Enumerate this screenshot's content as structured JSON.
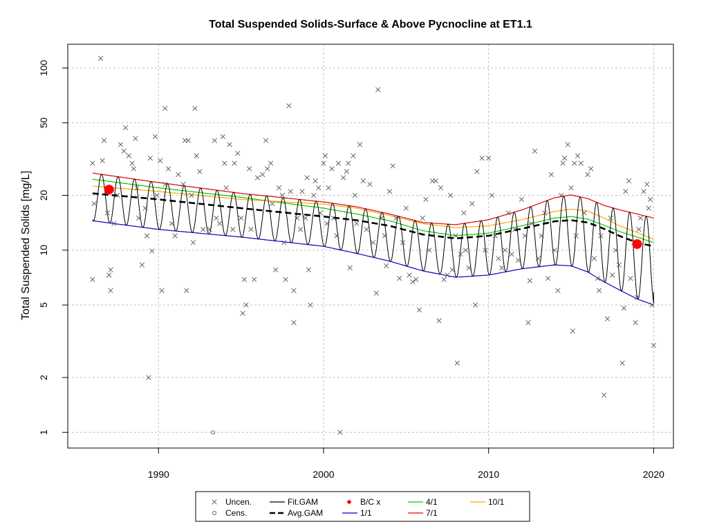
{
  "chart_data": {
    "type": "line",
    "title": "Total Suspended Solids-Surface & Above Pycnocline at ET1.1",
    "xlabel": "",
    "ylabel": "Total Suspended Solids [mg/L]",
    "y_scale": "log",
    "xlim": [
      1984.5,
      2021.2
    ],
    "ylim": [
      0.82,
      135
    ],
    "grid": true,
    "x_ticks": [
      1990,
      2000,
      2010,
      2020
    ],
    "y_ticks": [
      1,
      2,
      5,
      10,
      20,
      50,
      100
    ],
    "legend_position": "bottom",
    "colors": {
      "points": "#555555",
      "fit": "#000000",
      "avg": "#000000",
      "bc": "#ff0000",
      "s1_1": "#0000cc",
      "s4_1": "#00cc00",
      "s7_1": "#dd0000",
      "s10_1": "#ffa500",
      "grid": "#c0c0c0"
    },
    "legend": [
      {
        "label": "Uncen.",
        "symbol": "x-icon",
        "color": "#555555"
      },
      {
        "label": "Cens.",
        "symbol": "circle-icon",
        "color": "#555555"
      },
      {
        "label": "Fit.GAM",
        "symbol": "line",
        "color": "#000000"
      },
      {
        "label": "Avg.GAM",
        "symbol": "dashed-line",
        "color": "#000000"
      },
      {
        "label": "B/C x",
        "symbol": "diamond-icon",
        "color": "#ff0000"
      },
      {
        "label": "1/1",
        "symbol": "line",
        "color": "#0000cc"
      },
      {
        "label": "4/1",
        "symbol": "line",
        "color": "#00cc00"
      },
      {
        "label": "7/1",
        "symbol": "line",
        "color": "#dd0000"
      },
      {
        "label": "10/1",
        "symbol": "line",
        "color": "#ffa500"
      }
    ],
    "series": [
      {
        "name": "1/1",
        "key": "s1_1",
        "x": [
          1986,
          1990,
          1995,
          2000,
          2002,
          2004,
          2006,
          2008,
          2010,
          2012,
          2014,
          2015,
          2016,
          2017,
          2018,
          2019,
          2020
        ],
        "y": [
          14.5,
          13.0,
          11.8,
          10.5,
          9.6,
          8.7,
          7.7,
          7.1,
          7.3,
          7.9,
          8.3,
          8.2,
          7.6,
          6.7,
          6.0,
          5.4,
          5.0
        ]
      },
      {
        "name": "4/1",
        "key": "s4_1",
        "x": [
          1986,
          1990,
          1995,
          2000,
          2002,
          2004,
          2006,
          2008,
          2010,
          2012,
          2014,
          2015,
          2016,
          2017,
          2018,
          2019,
          2020
        ],
        "y": [
          24.5,
          22.0,
          19.5,
          17.0,
          15.8,
          14.5,
          12.8,
          12.0,
          12.4,
          13.6,
          15.0,
          15.3,
          14.8,
          13.7,
          12.6,
          11.8,
          11.0
        ]
      },
      {
        "name": "7/1",
        "key": "s7_1",
        "x": [
          1986,
          1990,
          1995,
          2000,
          2002,
          2004,
          2006,
          2008,
          2010,
          2012,
          2014,
          2015,
          2016,
          2017,
          2018,
          2019,
          2020
        ],
        "y": [
          26.5,
          23.5,
          20.5,
          18.4,
          17.3,
          15.8,
          14.2,
          13.8,
          14.7,
          16.6,
          19.4,
          20.1,
          19.2,
          17.6,
          16.6,
          15.8,
          15.0
        ]
      },
      {
        "name": "10/1",
        "key": "s10_1",
        "x": [
          1986,
          1990,
          1995,
          2000,
          2002,
          2004,
          2006,
          2008,
          2010,
          2012,
          2014,
          2015,
          2016,
          2017,
          2018,
          2019,
          2020
        ],
        "y": [
          22.5,
          21.0,
          19.0,
          17.9,
          17.0,
          15.5,
          14.0,
          13.3,
          13.6,
          14.7,
          16.3,
          16.8,
          16.4,
          15.0,
          13.5,
          12.5,
          11.5
        ]
      }
    ],
    "avg_gam": {
      "x": [
        1986,
        1990,
        1995,
        2000,
        2002,
        2004,
        2006,
        2008,
        2010,
        2012,
        2014,
        2015,
        2016,
        2017,
        2018,
        2019,
        2020
      ],
      "y": [
        20.5,
        19.0,
        17.0,
        15.3,
        14.6,
        13.6,
        12.2,
        11.6,
        12.0,
        13.1,
        14.4,
        14.6,
        14.2,
        13.1,
        11.9,
        11.0,
        10.5
      ]
    },
    "fit_gam": {
      "x_start": 1986,
      "x_end": 2020,
      "low_curve": "1/1",
      "high_curve": "7/1",
      "end_value": 5.9
    },
    "bc_points": [
      {
        "x": 1987,
        "y": 21.5
      },
      {
        "x": 2019,
        "y": 10.8
      }
    ],
    "censored_points": [
      {
        "x": 1993.3,
        "y": 1.0
      }
    ],
    "uncensored_points": [
      [
        1986.0,
        30
      ],
      [
        1986.0,
        6.9
      ],
      [
        1986.1,
        18
      ],
      [
        1986.5,
        113
      ],
      [
        1986.6,
        31
      ],
      [
        1986.7,
        40
      ],
      [
        1986.9,
        16
      ],
      [
        1987.0,
        7.3
      ],
      [
        1987.1,
        7.8
      ],
      [
        1987.1,
        6.0
      ],
      [
        1987.3,
        14
      ],
      [
        1987.5,
        20
      ],
      [
        1987.7,
        38
      ],
      [
        1987.9,
        35
      ],
      [
        1988.0,
        47
      ],
      [
        1988.2,
        33
      ],
      [
        1988.4,
        30
      ],
      [
        1988.5,
        28
      ],
      [
        1988.6,
        41
      ],
      [
        1988.7,
        22
      ],
      [
        1988.8,
        15
      ],
      [
        1989.0,
        8.3
      ],
      [
        1989.2,
        17
      ],
      [
        1989.3,
        12
      ],
      [
        1989.4,
        2.0
      ],
      [
        1989.5,
        32
      ],
      [
        1989.6,
        9.9
      ],
      [
        1989.8,
        42
      ],
      [
        1989.9,
        20
      ],
      [
        1990.1,
        31
      ],
      [
        1990.2,
        6.0
      ],
      [
        1990.4,
        23
      ],
      [
        1990.4,
        60
      ],
      [
        1990.6,
        28
      ],
      [
        1990.8,
        14
      ],
      [
        1991.0,
        12
      ],
      [
        1991.2,
        26
      ],
      [
        1991.5,
        23
      ],
      [
        1991.6,
        40
      ],
      [
        1991.7,
        6.0
      ],
      [
        1991.8,
        40
      ],
      [
        1992.0,
        20
      ],
      [
        1992.1,
        11
      ],
      [
        1992.2,
        60
      ],
      [
        1992.3,
        33
      ],
      [
        1992.5,
        27
      ],
      [
        1992.7,
        13
      ],
      [
        1993.1,
        13
      ],
      [
        1993.4,
        40
      ],
      [
        1993.5,
        15
      ],
      [
        1993.7,
        14
      ],
      [
        1993.9,
        42
      ],
      [
        1994.0,
        30
      ],
      [
        1994.1,
        22
      ],
      [
        1994.3,
        38
      ],
      [
        1994.5,
        13
      ],
      [
        1994.6,
        30
      ],
      [
        1994.8,
        34
      ],
      [
        1995.0,
        15
      ],
      [
        1995.1,
        4.5
      ],
      [
        1995.2,
        6.9
      ],
      [
        1995.3,
        5.0
      ],
      [
        1995.5,
        28
      ],
      [
        1995.6,
        13
      ],
      [
        1995.8,
        6.9
      ],
      [
        1996.0,
        25
      ],
      [
        1996.3,
        26
      ],
      [
        1996.5,
        40
      ],
      [
        1996.6,
        28
      ],
      [
        1996.8,
        30
      ],
      [
        1996.9,
        18
      ],
      [
        1997.1,
        7.8
      ],
      [
        1997.3,
        22
      ],
      [
        1997.5,
        20
      ],
      [
        1997.6,
        11
      ],
      [
        1997.7,
        6.9
      ],
      [
        1997.9,
        62
      ],
      [
        1998.0,
        21
      ],
      [
        1998.2,
        6.0
      ],
      [
        1998.2,
        4.0
      ],
      [
        1998.4,
        15
      ],
      [
        1998.6,
        13
      ],
      [
        1998.7,
        21
      ],
      [
        1998.9,
        15
      ],
      [
        1999.0,
        25
      ],
      [
        1999.1,
        7.8
      ],
      [
        1999.2,
        5.0
      ],
      [
        1999.4,
        20
      ],
      [
        1999.5,
        24
      ],
      [
        1999.7,
        22
      ],
      [
        1999.8,
        16
      ],
      [
        2000.0,
        30
      ],
      [
        2000.1,
        33
      ],
      [
        2000.2,
        14
      ],
      [
        2000.3,
        22
      ],
      [
        2000.5,
        28
      ],
      [
        2000.6,
        15
      ],
      [
        2000.8,
        12
      ],
      [
        2000.9,
        30
      ],
      [
        2001.0,
        1.0
      ],
      [
        2001.2,
        25
      ],
      [
        2001.4,
        27
      ],
      [
        2001.5,
        30
      ],
      [
        2001.6,
        8.0
      ],
      [
        2001.8,
        33
      ],
      [
        2001.9,
        20
      ],
      [
        2002.0,
        14
      ],
      [
        2002.2,
        38
      ],
      [
        2002.4,
        24
      ],
      [
        2002.6,
        13
      ],
      [
        2002.8,
        23
      ],
      [
        2003.0,
        11
      ],
      [
        2003.2,
        5.8
      ],
      [
        2003.3,
        76
      ],
      [
        2003.5,
        15
      ],
      [
        2003.7,
        12
      ],
      [
        2003.8,
        8.2
      ],
      [
        2004.0,
        21
      ],
      [
        2004.2,
        29
      ],
      [
        2004.4,
        15
      ],
      [
        2004.6,
        7.0
      ],
      [
        2004.8,
        11
      ],
      [
        2005.0,
        17
      ],
      [
        2005.2,
        7.3
      ],
      [
        2005.4,
        6.7
      ],
      [
        2005.6,
        6.9
      ],
      [
        2005.8,
        4.7
      ],
      [
        2006.0,
        15
      ],
      [
        2006.2,
        19
      ],
      [
        2006.4,
        10
      ],
      [
        2006.6,
        24
      ],
      [
        2006.8,
        24
      ],
      [
        2007.0,
        4.1
      ],
      [
        2007.1,
        22
      ],
      [
        2007.3,
        6.9
      ],
      [
        2007.5,
        7.3
      ],
      [
        2007.7,
        20
      ],
      [
        2007.8,
        7.8
      ],
      [
        2008.0,
        12
      ],
      [
        2008.1,
        2.4
      ],
      [
        2008.3,
        9.5
      ],
      [
        2008.5,
        16
      ],
      [
        2008.6,
        10
      ],
      [
        2008.8,
        8.0
      ],
      [
        2009.0,
        18
      ],
      [
        2009.2,
        5.0
      ],
      [
        2009.3,
        27
      ],
      [
        2009.6,
        32
      ],
      [
        2009.8,
        10
      ],
      [
        2010.0,
        32
      ],
      [
        2010.2,
        20
      ],
      [
        2010.4,
        12
      ],
      [
        2010.6,
        9.0
      ],
      [
        2010.8,
        8.0
      ],
      [
        2011.0,
        10
      ],
      [
        2011.2,
        16
      ],
      [
        2011.4,
        9.5
      ],
      [
        2011.6,
        13
      ],
      [
        2011.8,
        8.8
      ],
      [
        2012.0,
        19
      ],
      [
        2012.2,
        12
      ],
      [
        2012.4,
        4.0
      ],
      [
        2012.5,
        6.8
      ],
      [
        2012.6,
        14
      ],
      [
        2012.8,
        35
      ],
      [
        2013.0,
        9.0
      ],
      [
        2013.2,
        12
      ],
      [
        2013.4,
        16
      ],
      [
        2013.6,
        7.0
      ],
      [
        2013.8,
        26
      ],
      [
        2014.0,
        10
      ],
      [
        2014.2,
        6.0
      ],
      [
        2014.4,
        20
      ],
      [
        2014.5,
        30
      ],
      [
        2014.6,
        32
      ],
      [
        2014.8,
        38
      ],
      [
        2015.0,
        22
      ],
      [
        2015.1,
        3.6
      ],
      [
        2015.2,
        30
      ],
      [
        2015.3,
        12
      ],
      [
        2015.4,
        33
      ],
      [
        2015.6,
        30
      ],
      [
        2015.8,
        16
      ],
      [
        2016.0,
        26
      ],
      [
        2016.2,
        28
      ],
      [
        2016.4,
        9.0
      ],
      [
        2016.6,
        7.0
      ],
      [
        2016.7,
        6.0
      ],
      [
        2016.8,
        12
      ],
      [
        2017.0,
        1.6
      ],
      [
        2017.2,
        4.2
      ],
      [
        2017.4,
        15
      ],
      [
        2017.5,
        7.3
      ],
      [
        2017.7,
        10
      ],
      [
        2017.9,
        8.3
      ],
      [
        2018.1,
        2.4
      ],
      [
        2018.2,
        4.8
      ],
      [
        2018.3,
        21
      ],
      [
        2018.5,
        24
      ],
      [
        2018.6,
        7.0
      ],
      [
        2018.8,
        11
      ],
      [
        2018.9,
        4.0
      ],
      [
        2019.0,
        5.5
      ],
      [
        2019.1,
        13
      ],
      [
        2019.2,
        15
      ],
      [
        2019.4,
        21
      ],
      [
        2019.6,
        23
      ],
      [
        2019.7,
        17
      ],
      [
        2019.8,
        19
      ],
      [
        2019.9,
        5.0
      ],
      [
        2020.0,
        3.0
      ]
    ]
  }
}
